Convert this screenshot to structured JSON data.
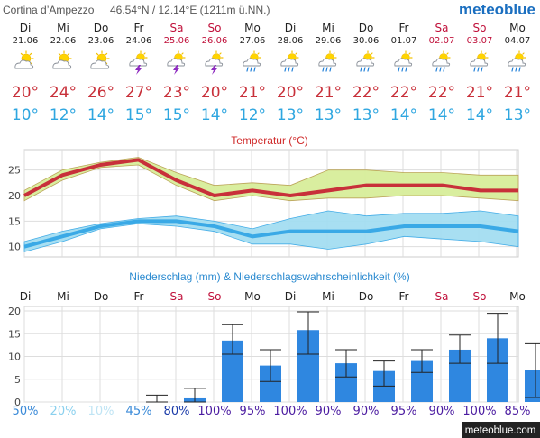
{
  "header": {
    "location": "Cortina d’Ampezzo",
    "coords": "46.54°N / 12.14°E (1211m ü.NN.)",
    "brand": "meteoblue",
    "footer_brand": "meteoblue.com"
  },
  "days": [
    {
      "dow": "Di",
      "date": "21.06",
      "weekend": false,
      "tmax": "20°",
      "tmin": "10°",
      "icon": "sun-cloud-icon"
    },
    {
      "dow": "Mi",
      "date": "22.06",
      "weekend": false,
      "tmax": "24°",
      "tmin": "12°",
      "icon": "sun-cloud-icon"
    },
    {
      "dow": "Do",
      "date": "23.06",
      "weekend": false,
      "tmax": "26°",
      "tmin": "14°",
      "icon": "sun-cloud-icon"
    },
    {
      "dow": "Fr",
      "date": "24.06",
      "weekend": false,
      "tmax": "27°",
      "tmin": "15°",
      "icon": "thunderstorm-icon"
    },
    {
      "dow": "Sa",
      "date": "25.06",
      "weekend": true,
      "tmax": "23°",
      "tmin": "15°",
      "icon": "thunderstorm-icon"
    },
    {
      "dow": "So",
      "date": "26.06",
      "weekend": true,
      "tmax": "20°",
      "tmin": "14°",
      "icon": "thunderstorm-icon"
    },
    {
      "dow": "Mo",
      "date": "27.06",
      "weekend": false,
      "tmax": "21°",
      "tmin": "12°",
      "icon": "sun-cloud-rain-icon"
    },
    {
      "dow": "Di",
      "date": "28.06",
      "weekend": false,
      "tmax": "20°",
      "tmin": "13°",
      "icon": "sun-cloud-rain-icon"
    },
    {
      "dow": "Mi",
      "date": "29.06",
      "weekend": false,
      "tmax": "21°",
      "tmin": "13°",
      "icon": "sun-cloud-rain-icon"
    },
    {
      "dow": "Do",
      "date": "30.06",
      "weekend": false,
      "tmax": "22°",
      "tmin": "13°",
      "icon": "sun-cloud-rain-icon"
    },
    {
      "dow": "Fr",
      "date": "01.07",
      "weekend": false,
      "tmax": "22°",
      "tmin": "14°",
      "icon": "sun-cloud-rain-icon"
    },
    {
      "dow": "Sa",
      "date": "02.07",
      "weekend": true,
      "tmax": "22°",
      "tmin": "14°",
      "icon": "sun-cloud-rain-icon"
    },
    {
      "dow": "So",
      "date": "03.07",
      "weekend": true,
      "tmax": "21°",
      "tmin": "14°",
      "icon": "sun-cloud-rain-icon"
    },
    {
      "dow": "Mo",
      "date": "04.07",
      "weekend": false,
      "tmax": "21°",
      "tmin": "13°",
      "icon": "sun-cloud-rain-icon"
    }
  ],
  "colors": {
    "max_line": "#c8303a",
    "max_band": "#d8ee9a",
    "min_line": "#3aa9e6",
    "min_band": "#a4def2",
    "precip_bar": "#2f87e0",
    "weekend": "#c0103a",
    "weekday": "#222222",
    "grid": "#dddddd",
    "title_red": "#d02a2a",
    "title_blue": "#2a8ad0"
  },
  "chart_data": [
    {
      "type": "line",
      "title": "Temperatur (°C)",
      "x": [
        "21.06",
        "22.06",
        "23.06",
        "24.06",
        "25.06",
        "26.06",
        "27.06",
        "28.06",
        "29.06",
        "30.06",
        "01.07",
        "02.07",
        "03.07",
        "04.07"
      ],
      "ylim": [
        8,
        29
      ],
      "yticks": [
        10,
        15,
        20,
        25
      ],
      "grid": true,
      "series": [
        {
          "values": [
            20,
            24,
            26,
            27,
            23,
            20,
            21,
            20,
            21,
            22,
            22,
            22,
            21,
            21
          ],
          "band_low": [
            19,
            23,
            25.5,
            26,
            22,
            19,
            20,
            19,
            19.5,
            19.5,
            20,
            20,
            19.5,
            19
          ],
          "band_high": [
            21,
            25,
            26.5,
            27.5,
            24.5,
            22,
            22.5,
            22,
            25,
            25,
            24.5,
            24.5,
            24,
            24
          ]
        },
        {
          "values": [
            10,
            12,
            14,
            15,
            15,
            14,
            12,
            13,
            13,
            13,
            14,
            14,
            14,
            13
          ],
          "band_low": [
            9,
            11,
            13.5,
            14.5,
            14,
            13,
            10.5,
            10.5,
            9.5,
            10.5,
            12,
            11.5,
            11,
            10
          ],
          "band_high": [
            11,
            13,
            14.5,
            15.5,
            16,
            15,
            13.5,
            15.5,
            17,
            16,
            16.5,
            16.5,
            17,
            16
          ]
        }
      ]
    },
    {
      "type": "bar",
      "title": "Niederschlag (mm) & Niederschlagswahrscheinlichkeit (%)",
      "x_day_labels": [
        "Di",
        "Mi",
        "Do",
        "Fr",
        "Sa",
        "So",
        "Mo",
        "Di",
        "Mi",
        "Do",
        "Fr",
        "Sa",
        "So",
        "Mo"
      ],
      "weekend": [
        false,
        false,
        false,
        false,
        true,
        true,
        false,
        false,
        false,
        false,
        false,
        true,
        true,
        false
      ],
      "ylim": [
        0,
        21
      ],
      "yticks": [
        0,
        5,
        10,
        15,
        20
      ],
      "grid": true,
      "values": [
        0,
        0,
        0,
        0,
        0.8,
        13.5,
        8,
        15.8,
        8.5,
        6.8,
        9,
        11.5,
        14,
        7
      ],
      "err_low": [
        0,
        0,
        0,
        0,
        0,
        10.5,
        4.5,
        10.5,
        5.5,
        3.5,
        6.5,
        8.5,
        8.5,
        1
      ],
      "err_high": [
        0,
        0,
        0,
        1.5,
        3,
        17,
        11.5,
        19.8,
        11.5,
        9,
        11.5,
        14.7,
        19.5,
        12.8
      ],
      "probabilities": [
        "50%",
        "20%",
        "10%",
        "45%",
        "80%",
        "100%",
        "95%",
        "100%",
        "90%",
        "90%",
        "95%",
        "90%",
        "100%",
        "85%"
      ],
      "prob_colors": [
        "#3a8ad8",
        "#8ad0ee",
        "#bfe4f4",
        "#3a8ad8",
        "#1a3aa8",
        "#4a1aa0",
        "#4a1aa0",
        "#4a1aa0",
        "#4a1aa0",
        "#4a1aa0",
        "#4a1aa0",
        "#4a1aa0",
        "#4a1aa0",
        "#4a1aa0"
      ]
    }
  ]
}
